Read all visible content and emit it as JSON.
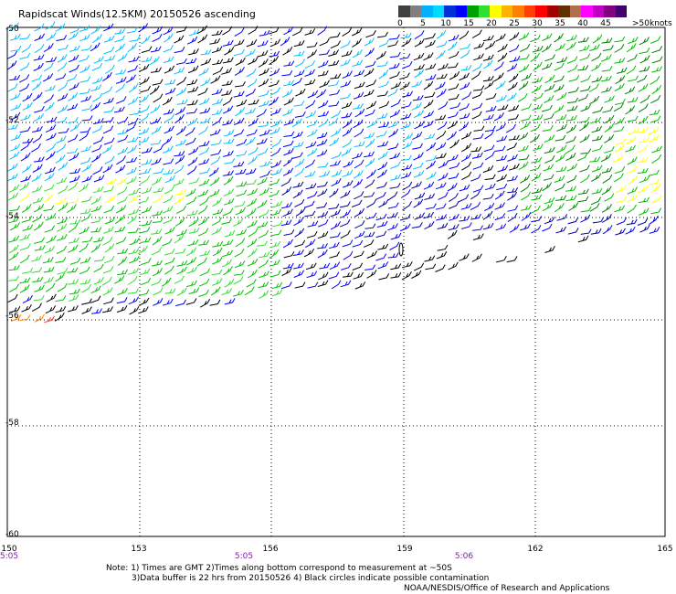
{
  "title": "Rapidscat Winds(12.5KM) 20150526 ascending",
  "legend": {
    "colors": [
      "#3f3f3f",
      "#7f7f7f",
      "#00b0ff",
      "#00d8ff",
      "#0030d8",
      "#0000ff",
      "#00a000",
      "#30e030",
      "#ffff00",
      "#ffb000",
      "#ff8000",
      "#ff4000",
      "#ff0000",
      "#a00000",
      "#603000",
      "#b07050",
      "#ff00ff",
      "#c000c0",
      "#800080",
      "#400070"
    ],
    "labels": [
      "0",
      "5",
      "10",
      "15",
      "20",
      "25",
      "30",
      "35",
      "40",
      "45",
      ">50"
    ],
    "unit": "knots"
  },
  "map": {
    "lat_labels": [
      "-50",
      "-52",
      "-54",
      "-56",
      "-58",
      "-60"
    ],
    "lon_labels": [
      "150",
      "153",
      "156",
      "159",
      "162",
      "165"
    ],
    "time_labels": [
      "5:05",
      "5:05",
      "5:06"
    ],
    "barb_colors": {
      "black": "#000000",
      "lightblue": "#00bfff",
      "blue": "#0000ff",
      "darkblue": "#0000a0",
      "green": "#00c000",
      "darkgreen": "#008000",
      "lightgreen": "#33dd33",
      "yellow": "#ffff00",
      "red": "#ff3030",
      "orange": "#ff8000"
    }
  },
  "notes": {
    "line1": "Note: 1) Times are GMT 2)Times along bottom correspond to measurement at ~50S",
    "line2": "3)Data buffer is 22 hrs from 20150526 4) Black circles indicate possible contamination",
    "line3": "NOAA/NESDIS/Office of Research and Applications"
  }
}
